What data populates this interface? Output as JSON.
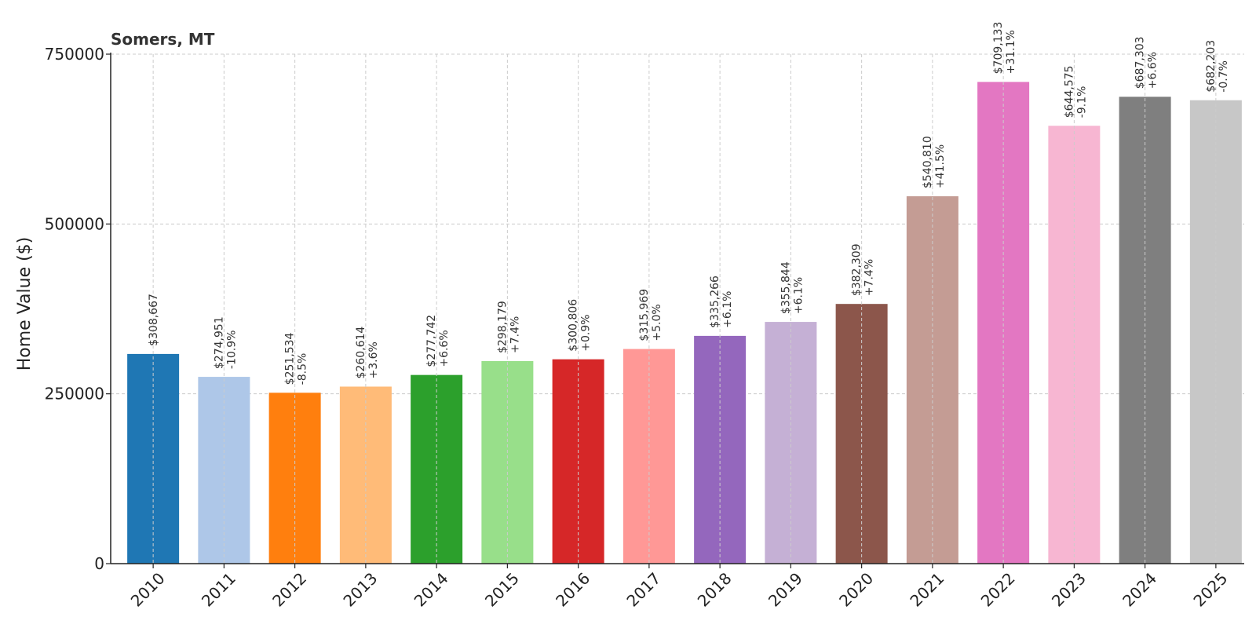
{
  "chart_data": {
    "type": "bar",
    "title": "Somers, MT",
    "xlabel": "",
    "ylabel": "Home Value ($)",
    "ylim": [
      0,
      750000
    ],
    "yticks": [
      "0",
      "250000",
      "500000",
      "750000"
    ],
    "ytick_values": [
      0,
      250000,
      500000,
      750000
    ],
    "grid": true,
    "categories": [
      "2010",
      "2011",
      "2012",
      "2013",
      "2014",
      "2015",
      "2016",
      "2017",
      "2018",
      "2019",
      "2020",
      "2021",
      "2022",
      "2023",
      "2024",
      "2025"
    ],
    "values": [
      308667,
      274951,
      251534,
      260614,
      277742,
      298179,
      300806,
      315969,
      335266,
      355844,
      382309,
      540810,
      709133,
      644575,
      687303,
      682203
    ],
    "value_labels": [
      "$308,667",
      "$274,951",
      "$251,534",
      "$260,614",
      "$277,742",
      "$298,179",
      "$300,806",
      "$315,969",
      "$335,266",
      "$355,844",
      "$382,309",
      "$540,810",
      "$709,133",
      "$644,575",
      "$687,303",
      "$682,203"
    ],
    "change_labels": [
      "",
      "-10.9%",
      "-8.5%",
      "+3.6%",
      "+6.6%",
      "+7.4%",
      "+0.9%",
      "+5.0%",
      "+6.1%",
      "+6.1%",
      "+7.4%",
      "+41.5%",
      "+31.1%",
      "-9.1%",
      "+6.6%",
      "-0.7%"
    ],
    "colors": [
      "#1f77b4",
      "#aec7e8",
      "#ff7f0e",
      "#ffbb78",
      "#2ca02c",
      "#98df8a",
      "#d62728",
      "#ff9896",
      "#9467bd",
      "#c5b0d5",
      "#8c564b",
      "#c49c94",
      "#e377c2",
      "#f7b6d2",
      "#7f7f7f",
      "#c7c7c7"
    ],
    "grid_color": "#cccccc",
    "axis_color": "#222222"
  }
}
